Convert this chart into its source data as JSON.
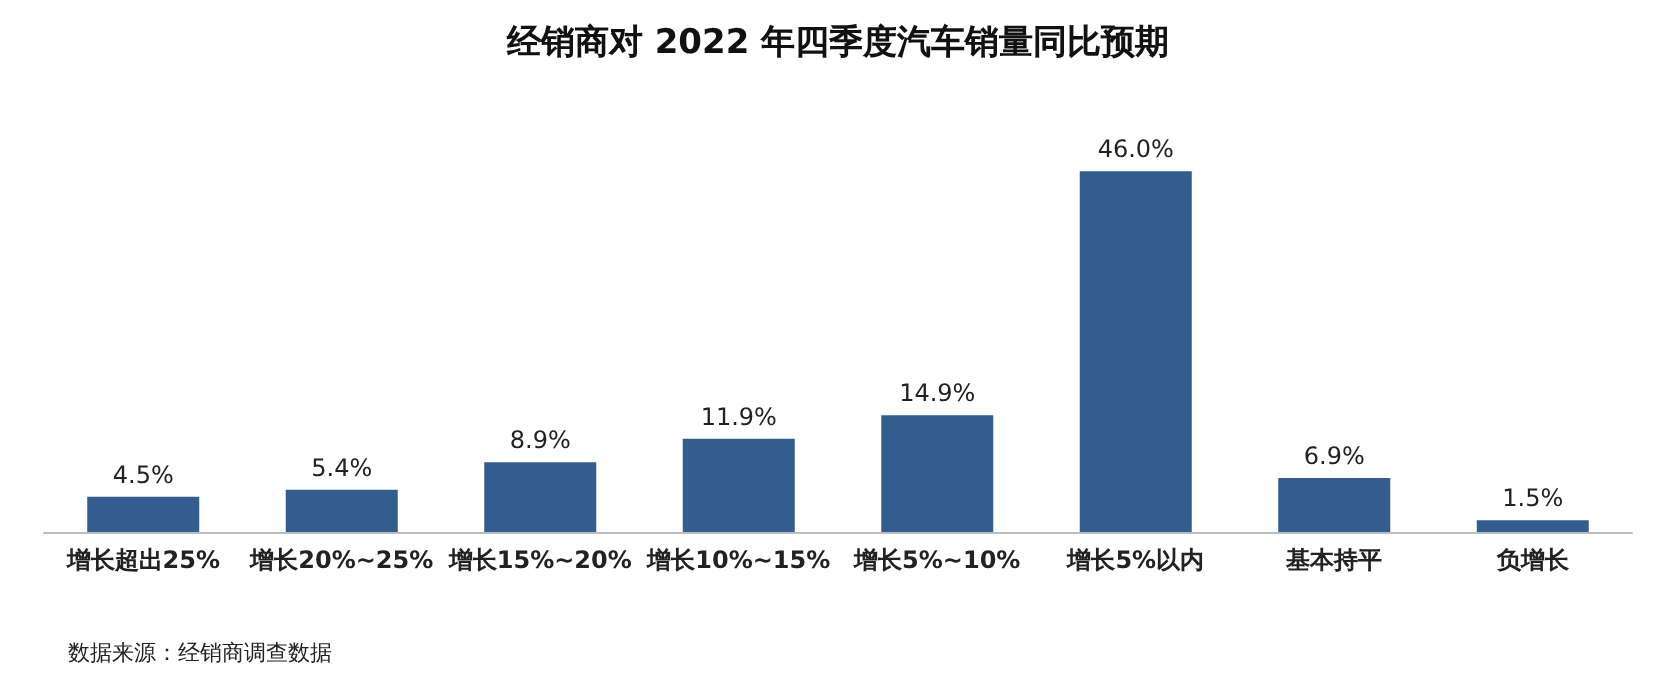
{
  "chart_data": {
    "type": "bar",
    "title": "经销商对 2022 年四季度汽车销量同比预期",
    "categories": [
      "增长超出25%",
      "增长20%~25%",
      "增长15%~20%",
      "增长10%~15%",
      "增长5%~10%",
      "增长5%以内",
      "基本持平",
      "负增长"
    ],
    "values": [
      4.5,
      5.4,
      8.9,
      11.9,
      14.9,
      46.0,
      6.9,
      1.5
    ],
    "value_labels": [
      "4.5%",
      "5.4%",
      "8.9%",
      "11.9%",
      "14.9%",
      "46.0%",
      "6.9%",
      "1.5%"
    ],
    "color": "#335d8f",
    "annotations": [
      "数据来源：经销商调查数据"
    ]
  }
}
